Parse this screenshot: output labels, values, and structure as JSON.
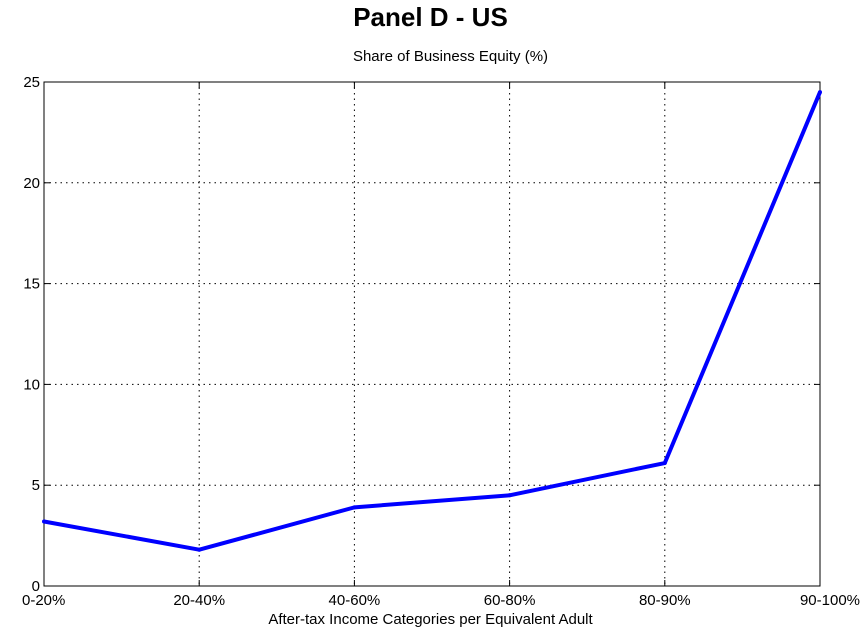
{
  "chart_data": {
    "type": "line",
    "title": "Panel D - US",
    "subtitle": "Share of Business Equity (%)",
    "xlabel": "After-tax Income Categories per Equivalent Adult",
    "ylabel": "",
    "categories": [
      "0-20%",
      "20-40%",
      "40-60%",
      "60-80%",
      "80-90%",
      "90-100%"
    ],
    "series": [
      {
        "values": [
          3.2,
          1.8,
          3.9,
          4.5,
          6.1,
          24.5
        ]
      }
    ],
    "ylim": [
      0,
      25
    ],
    "yticks": [
      0,
      5,
      10,
      15,
      20,
      25
    ],
    "grid": true,
    "colors": {
      "line": "#0000ff",
      "grid": "#000000"
    }
  }
}
